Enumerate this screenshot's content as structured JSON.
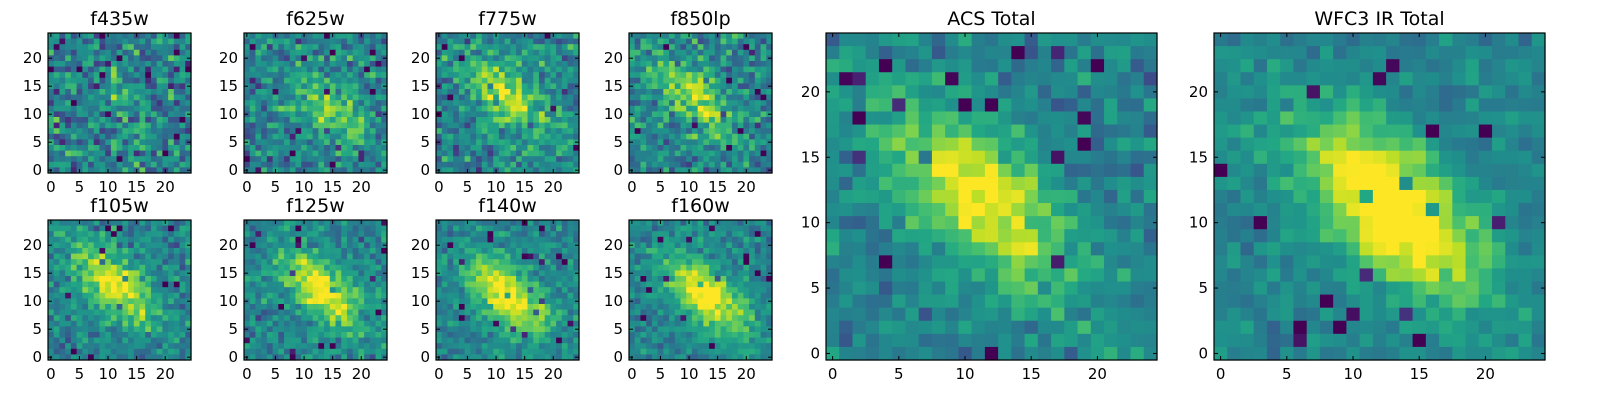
{
  "figure": {
    "colormap": "viridis",
    "colors": {
      "low": "#440154",
      "mid": "#21918c",
      "high": "#fde725"
    }
  },
  "chart_data": [
    {
      "type": "heatmap",
      "title": "f435w",
      "grid_size": 25,
      "xticks": [
        "0",
        "5",
        "10",
        "15",
        "20"
      ],
      "yticks": [
        "0",
        "5",
        "10",
        "15",
        "20"
      ],
      "xlim": [
        0,
        24
      ],
      "ylim": [
        0,
        24
      ],
      "signal": 0.1,
      "noise": 0.55,
      "peak": [
        12,
        12
      ],
      "seed": 3
    },
    {
      "type": "heatmap",
      "title": "f625w",
      "grid_size": 25,
      "xticks": [
        "0",
        "5",
        "10",
        "15",
        "20"
      ],
      "yticks": [
        "0",
        "5",
        "10",
        "15",
        "20"
      ],
      "xlim": [
        0,
        24
      ],
      "ylim": [
        0,
        24
      ],
      "signal": 0.35,
      "noise": 0.45,
      "peak": [
        14,
        11
      ],
      "seed": 7
    },
    {
      "type": "heatmap",
      "title": "f775w",
      "grid_size": 25,
      "xticks": [
        "0",
        "5",
        "10",
        "15",
        "20"
      ],
      "yticks": [
        "0",
        "5",
        "10",
        "15",
        "20"
      ],
      "xlim": [
        0,
        24
      ],
      "ylim": [
        0,
        24
      ],
      "signal": 0.45,
      "noise": 0.45,
      "peak": [
        12,
        13
      ],
      "seed": 11
    },
    {
      "type": "heatmap",
      "title": "f850lp",
      "grid_size": 25,
      "xticks": [
        "0",
        "5",
        "10",
        "15",
        "20"
      ],
      "yticks": [
        "0",
        "5",
        "10",
        "15",
        "20"
      ],
      "xlim": [
        0,
        24
      ],
      "ylim": [
        0,
        24
      ],
      "signal": 0.4,
      "noise": 0.45,
      "peak": [
        11,
        13
      ],
      "seed": 13
    },
    {
      "type": "heatmap",
      "title": "f105w",
      "grid_size": 25,
      "xticks": [
        "0",
        "5",
        "10",
        "15",
        "20"
      ],
      "yticks": [
        "0",
        "5",
        "10",
        "15",
        "20"
      ],
      "xlim": [
        0,
        24
      ],
      "ylim": [
        0,
        24
      ],
      "signal": 0.55,
      "noise": 0.35,
      "peak": [
        11,
        13
      ],
      "seed": 17
    },
    {
      "type": "heatmap",
      "title": "f125w",
      "grid_size": 25,
      "xticks": [
        "0",
        "5",
        "10",
        "15",
        "20"
      ],
      "yticks": [
        "0",
        "5",
        "10",
        "15",
        "20"
      ],
      "xlim": [
        0,
        24
      ],
      "ylim": [
        0,
        24
      ],
      "signal": 0.55,
      "noise": 0.35,
      "peak": [
        13,
        12
      ],
      "seed": 19
    },
    {
      "type": "heatmap",
      "title": "f140w",
      "grid_size": 25,
      "xticks": [
        "0",
        "5",
        "10",
        "15",
        "20"
      ],
      "yticks": [
        "0",
        "5",
        "10",
        "15",
        "20"
      ],
      "xlim": [
        0,
        24
      ],
      "ylim": [
        0,
        24
      ],
      "signal": 0.6,
      "noise": 0.3,
      "peak": [
        12,
        11
      ],
      "seed": 23
    },
    {
      "type": "heatmap",
      "title": "f160w",
      "grid_size": 25,
      "xticks": [
        "0",
        "5",
        "10",
        "15",
        "20"
      ],
      "yticks": [
        "0",
        "5",
        "10",
        "15",
        "20"
      ],
      "xlim": [
        0,
        24
      ],
      "ylim": [
        0,
        24
      ],
      "signal": 0.6,
      "noise": 0.3,
      "peak": [
        13,
        11
      ],
      "seed": 29
    },
    {
      "type": "heatmap",
      "title": "ACS Total",
      "grid_size": 25,
      "xticks": [
        "0",
        "5",
        "10",
        "15",
        "20"
      ],
      "yticks": [
        "0",
        "5",
        "10",
        "15",
        "20"
      ],
      "xlim": [
        0,
        24
      ],
      "ylim": [
        0,
        24
      ],
      "signal": 0.55,
      "noise": 0.3,
      "peak": [
        11,
        12
      ],
      "seed": 31
    },
    {
      "type": "heatmap",
      "title": "WFC3 IR Total",
      "grid_size": 25,
      "xticks": [
        "0",
        "5",
        "10",
        "15",
        "20"
      ],
      "yticks": [
        "0",
        "5",
        "10",
        "15",
        "20"
      ],
      "xlim": [
        0,
        24
      ],
      "ylim": [
        0,
        24
      ],
      "signal": 0.7,
      "noise": 0.22,
      "peak": [
        13,
        11
      ],
      "seed": 37
    }
  ]
}
